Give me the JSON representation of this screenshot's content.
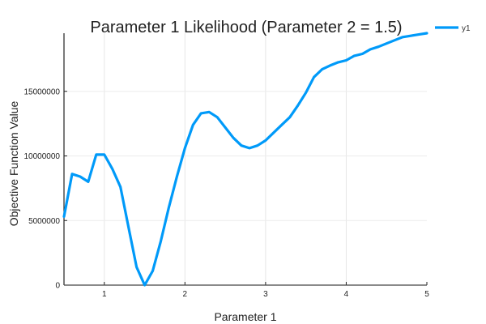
{
  "chart_data": {
    "type": "line",
    "title": "Parameter 1 Likelihood (Parameter 2 = 1.5)",
    "xlabel": "Parameter 1",
    "ylabel": "Objective Function Value",
    "xlim": [
      0.5,
      5
    ],
    "ylim": [
      0,
      19800000
    ],
    "xticks": [
      1,
      2,
      3,
      4,
      5
    ],
    "xtick_labels": [
      "1",
      "2",
      "3",
      "4",
      "5"
    ],
    "yticks": [
      0,
      5000000,
      10000000,
      15000000
    ],
    "ytick_labels": [
      "0",
      "5000000",
      "10000000",
      "15000000"
    ],
    "grid": true,
    "legend_position": "top-right-outside",
    "series": [
      {
        "name": "y1",
        "color": "#009AF9",
        "x": [
          0.5,
          0.6,
          0.7,
          0.8,
          0.9,
          1.0,
          1.1,
          1.2,
          1.3,
          1.4,
          1.5,
          1.6,
          1.7,
          1.8,
          1.9,
          2.0,
          2.1,
          2.2,
          2.3,
          2.4,
          2.5,
          2.6,
          2.7,
          2.8,
          2.9,
          3.0,
          3.1,
          3.2,
          3.3,
          3.4,
          3.5,
          3.6,
          3.7,
          3.8,
          3.9,
          4.0,
          4.1,
          4.2,
          4.3,
          4.4,
          4.5,
          4.6,
          4.7,
          4.8,
          4.9,
          5.0
        ],
        "values": [
          5300000,
          8600000,
          8400000,
          8000000,
          10100000,
          10100000,
          9000000,
          7600000,
          4500000,
          1400000,
          0,
          1100000,
          3400000,
          6000000,
          8400000,
          10600000,
          12400000,
          13300000,
          13400000,
          13000000,
          12200000,
          11400000,
          10800000,
          10600000,
          10800000,
          11200000,
          11800000,
          12400000,
          13000000,
          13900000,
          14900000,
          16100000,
          16700000,
          17000000,
          17250000,
          17400000,
          17750000,
          17900000,
          18250000,
          18450000,
          18700000,
          18950000,
          19200000,
          19300000,
          19400000,
          19500000
        ]
      }
    ]
  },
  "legend": {
    "items": [
      {
        "label": "y1",
        "color": "#009AF9"
      }
    ]
  }
}
